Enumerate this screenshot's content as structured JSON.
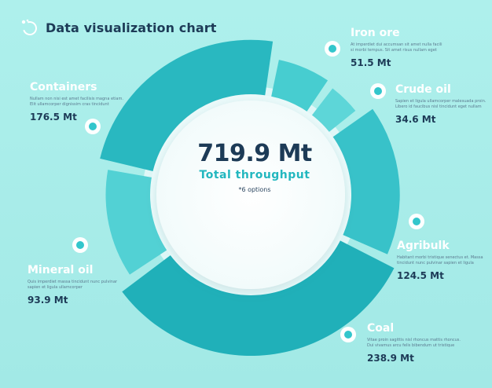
{
  "header": {
    "title": "Data visualization chart",
    "logo_icon": "ring-dots-logo-icon"
  },
  "center": {
    "value": "719.9 Mt",
    "label": "Total  throughput",
    "note": "*6 options"
  },
  "chart_data": {
    "type": "pie",
    "variant": "radial-donut",
    "total": 719.9,
    "unit": "Mt",
    "categories": [
      "Iron ore",
      "Crude oil",
      "Agribulk",
      "Coal",
      "Mineral oil",
      "Containers"
    ],
    "values": [
      51.5,
      34.6,
      124.5,
      238.9,
      93.9,
      176.5
    ],
    "slices": [
      {
        "name": "Iron ore",
        "value": 51.5,
        "value_label": "51.5 Mt",
        "color": "#47cdd0",
        "description": "At imperdiet dui accumsan sit amet nulla facili si morbi tempus. Sit amet risus nullam eget"
      },
      {
        "name": "Crude oil",
        "value": 34.6,
        "value_label": "34.6 Mt",
        "color": "#5dd6d8",
        "description": "Sapien et ligula ullamcorper malesuada proin. Libero id faucibus nisl tincidunt eget nullam"
      },
      {
        "name": "Agribulk",
        "value": 124.5,
        "value_label": "124.5 Mt",
        "color": "#38c2c9",
        "description": "Habitant morbi tristique senectus et. Massa tincidunt nunc pulvinar sapien et ligula"
      },
      {
        "name": "Coal",
        "value": 238.9,
        "value_label": "238.9 Mt",
        "color": "#20b0b9",
        "description": "Vitae proin sagittis nisl rhoncus mattis rhoncus. Dui vivamus arcu felis bibendum ut tristique"
      },
      {
        "name": "Mineral oil",
        "value": 93.9,
        "value_label": "93.9 Mt",
        "color": "#52d1d4",
        "description": "Quis imperdiet massa tincidunt nunc pulvinar sapien et ligula ullamcorper"
      },
      {
        "name": "Containers",
        "value": 176.5,
        "value_label": "176.5 Mt",
        "color": "#29b8c0",
        "description": "Nullam non nisi est amet facilisis magna etiam. Elit ullamcorper dignissim cras tincidunt"
      }
    ]
  }
}
